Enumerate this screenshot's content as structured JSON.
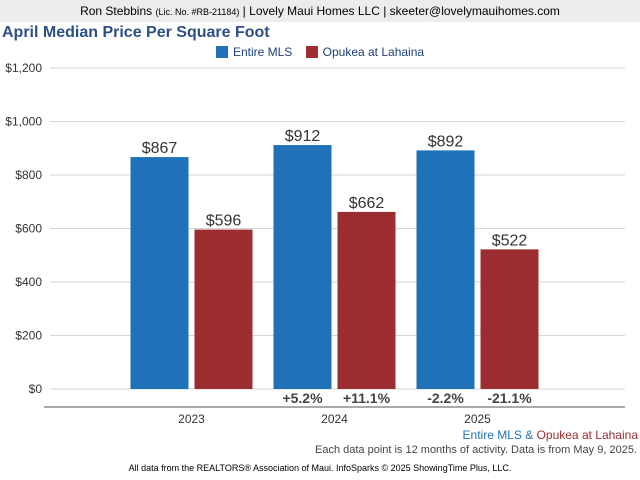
{
  "header": {
    "agent_name": "Ron Stebbins",
    "license": "(Lic. No. #RB-21184)",
    "company": "Lovely Maui Homes LLC",
    "email": "skeeter@lovelymauihomes.com",
    "separator": " | "
  },
  "chart_data": {
    "type": "bar",
    "title": "April Median Price Per Square Foot",
    "categories": [
      "2023",
      "2024",
      "2025"
    ],
    "series": [
      {
        "name": "Entire MLS",
        "color": "#1f72b8",
        "values": [
          867,
          912,
          892
        ],
        "labels": [
          "$867",
          "$912",
          "$892"
        ],
        "changes": [
          "",
          "+5.2%",
          "-2.2%"
        ]
      },
      {
        "name": "Opukea at Lahaina",
        "color": "#9b2d30",
        "values": [
          596,
          662,
          522
        ],
        "labels": [
          "$596",
          "$662",
          "$522"
        ],
        "changes": [
          "",
          "+11.1%",
          "-21.1%"
        ]
      }
    ],
    "yticks": [
      "$0",
      "$200",
      "$400",
      "$600",
      "$800",
      "$1,000",
      "$1,200"
    ],
    "ylim": [
      0,
      1200
    ],
    "grid": true,
    "legend_position": "top-center"
  },
  "notes": {
    "series_a": "Entire MLS",
    "amp": " & ",
    "series_b": "Opukea at Lahaina",
    "activity": "Each data point is 12 months of activity. Data is from May 9, 2025.",
    "footer": "All data from the REALTORS® Association of Maui. InfoSparks © 2025 ShowingTime Plus, LLC."
  }
}
